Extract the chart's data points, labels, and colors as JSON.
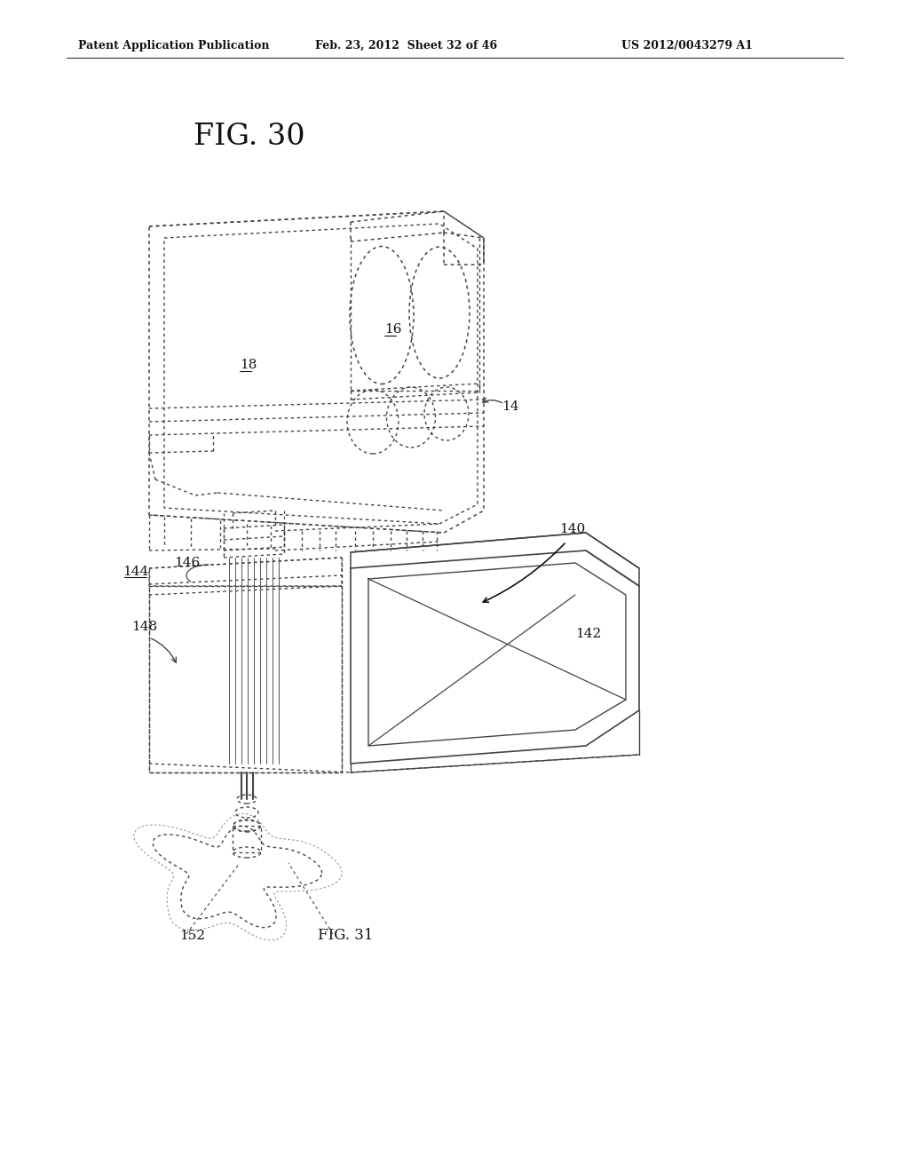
{
  "bg_color": "#ffffff",
  "header_left": "Patent Application Publication",
  "header_mid": "Feb. 23, 2012  Sheet 32 of 46",
  "header_right": "US 2012/0043279 A1",
  "fig30_title": "FIG. 30",
  "fig31_label": "FIG. 31",
  "line_color": "#444444",
  "font_size_header": 9,
  "font_size_title": 24,
  "font_size_label": 11
}
